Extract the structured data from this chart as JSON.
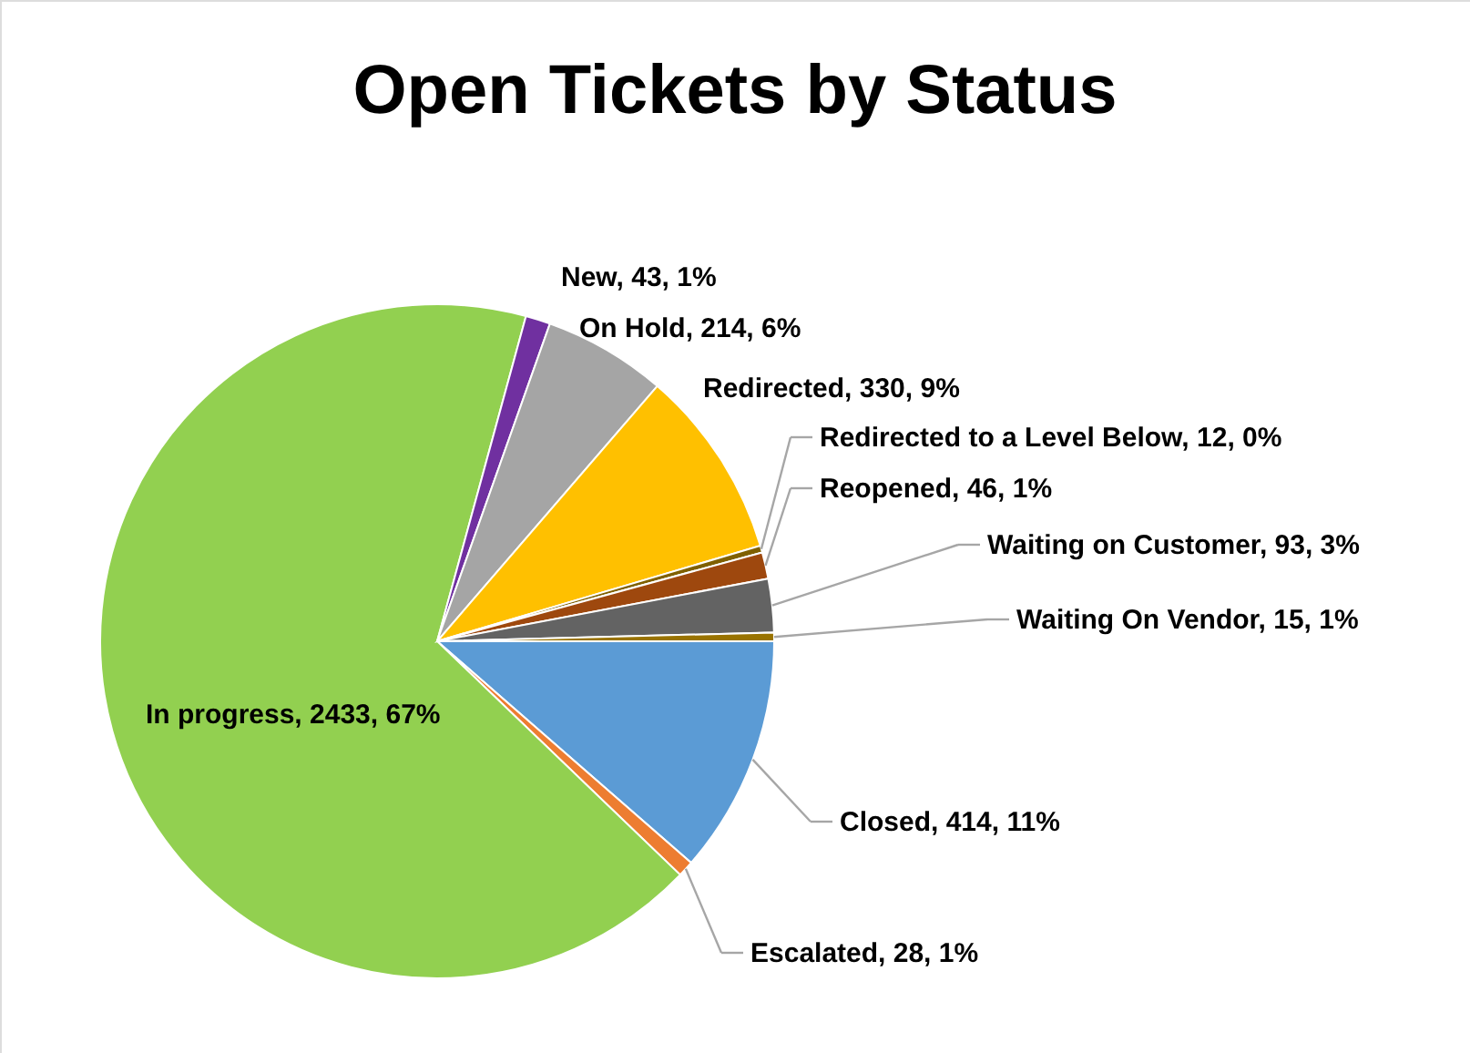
{
  "chart_data": {
    "type": "pie",
    "title": "Open Tickets by Status",
    "categories": [
      "Closed",
      "Escalated",
      "In progress",
      "New",
      "On Hold",
      "Redirected",
      "Redirected to a Level Below",
      "Reopened",
      "Waiting on Customer",
      "Waiting On Vendor"
    ],
    "values": [
      414,
      28,
      2433,
      43,
      214,
      330,
      12,
      46,
      93,
      15
    ],
    "value_labels": [
      "414, 11%",
      "28, 1%",
      "2433, 67%",
      "43, 1%",
      "214, 6%",
      "330, 9%",
      "12, 0%",
      "46, 1%",
      "93, 3%",
      "15, 1%"
    ],
    "colors": [
      "#5b9bd5",
      "#ed7d31",
      "#92d050",
      "#7030a0",
      "#a5a5a5",
      "#ffc000",
      "#7f6000",
      "#9e480e",
      "#636363",
      "#997300"
    ],
    "legend": false
  }
}
